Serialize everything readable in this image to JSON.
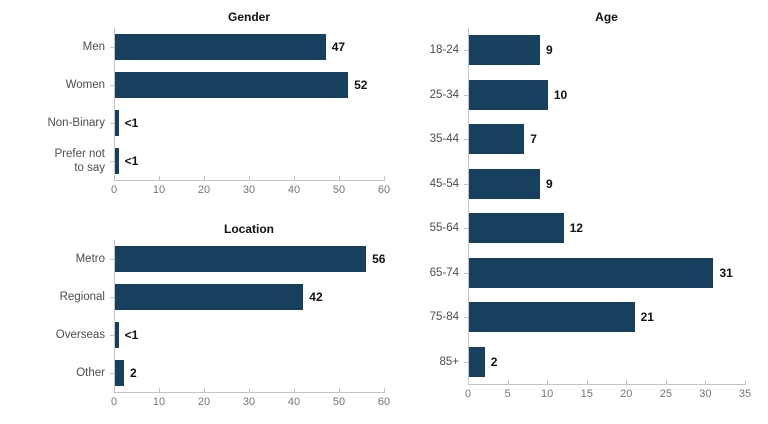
{
  "figure": {
    "background": "#ffffff"
  },
  "colors": {
    "bar": "#17405f",
    "axis_line": "#c4c4c4",
    "tick_label": "#767676",
    "category_label": "#4d4d4d",
    "value_label": "#111111",
    "title": "#111111"
  },
  "chart_data": [
    {
      "id": "gender",
      "type": "bar",
      "orientation": "horizontal",
      "title": "Gender",
      "categories": [
        "Men",
        "Women",
        "Non-Binary",
        "Prefer not\nto say"
      ],
      "values": [
        47,
        52,
        0.8,
        0.8
      ],
      "value_labels": [
        "47",
        "52",
        "<1",
        "<1"
      ],
      "xlim": [
        0,
        60
      ],
      "xticks": [
        0,
        10,
        20,
        30,
        40,
        50,
        60
      ],
      "grid": false,
      "legend": false
    },
    {
      "id": "location",
      "type": "bar",
      "orientation": "horizontal",
      "title": "Location",
      "categories": [
        "Metro",
        "Regional",
        "Overseas",
        "Other"
      ],
      "values": [
        56,
        42,
        0.8,
        2
      ],
      "value_labels": [
        "56",
        "42",
        "<1",
        "2"
      ],
      "xlim": [
        0,
        60
      ],
      "xticks": [
        0,
        10,
        20,
        30,
        40,
        50,
        60
      ],
      "grid": false,
      "legend": false
    },
    {
      "id": "age",
      "type": "bar",
      "orientation": "horizontal",
      "title": "Age",
      "categories": [
        "18-24",
        "25-34",
        "35-44",
        "45-54",
        "55-64",
        "65-74",
        "75-84",
        "85+"
      ],
      "values": [
        9,
        10,
        7,
        9,
        12,
        31,
        21,
        2
      ],
      "value_labels": [
        "9",
        "10",
        "7",
        "9",
        "12",
        "31",
        "21",
        "2"
      ],
      "xlim": [
        0,
        35
      ],
      "xticks": [
        0,
        5,
        10,
        15,
        20,
        25,
        30,
        35
      ],
      "grid": false,
      "legend": false
    }
  ]
}
